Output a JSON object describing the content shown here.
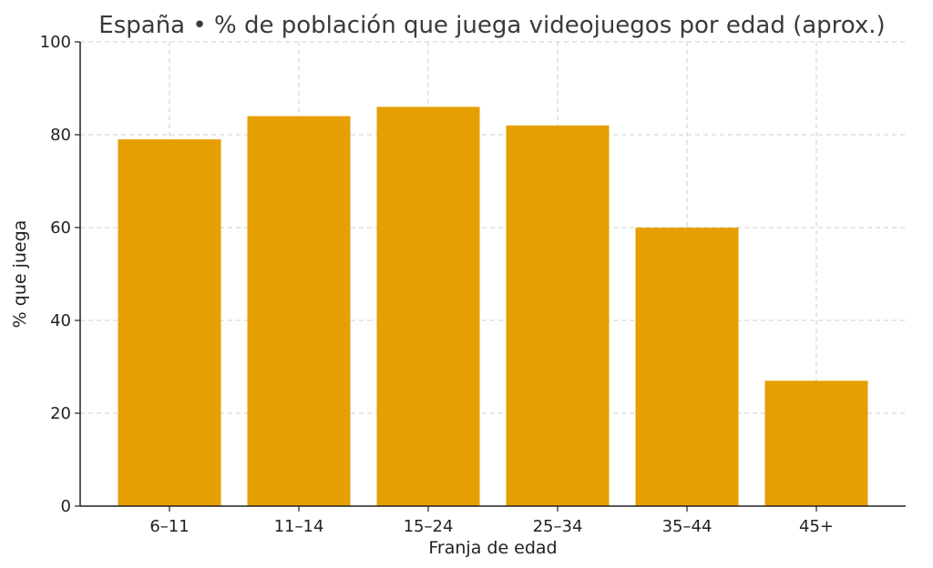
{
  "chart_data": {
    "type": "bar",
    "title": "España • % de población que juega videojuegos por edad (aprox.)",
    "xlabel": "Franja de edad",
    "ylabel": "% que juega",
    "categories": [
      "6–11",
      "11–14",
      "15–24",
      "25–34",
      "35–44",
      "45+"
    ],
    "values": [
      79,
      84,
      86,
      82,
      60,
      27
    ],
    "ylim": [
      0,
      100
    ],
    "yticks": [
      0,
      20,
      40,
      60,
      80,
      100
    ],
    "grid": true,
    "bar_color": "#E69F00"
  }
}
